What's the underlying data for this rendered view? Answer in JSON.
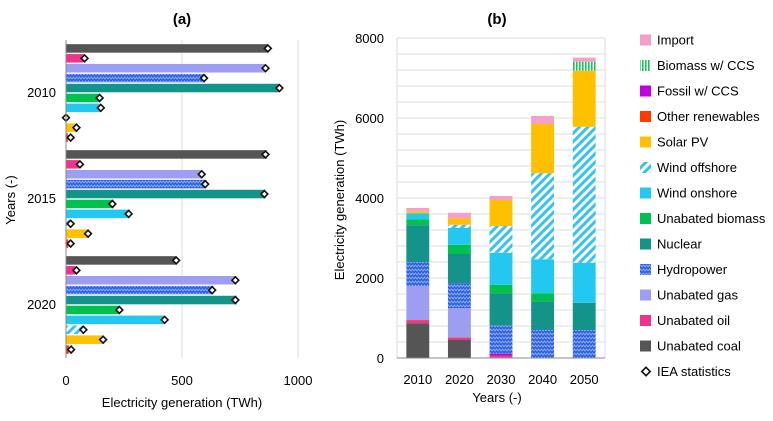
{
  "chart_data": [
    {
      "type": "bar",
      "orientation": "horizontal",
      "title": "(a)",
      "xlabel": "Electricity generation (TWh)",
      "ylabel": "Years (-)",
      "xlim": [
        0,
        1000
      ],
      "xticks": [
        "0",
        "500",
        "1000"
      ],
      "grid": "vertical",
      "categories": [
        "2010",
        "2015",
        "2020"
      ],
      "bar_order_top_to_bottom": [
        "Unabated  coal",
        "Unabated oil",
        "Unabated gas",
        "Hydropower",
        "Nuclear",
        "Unabated biomass",
        "Wind onshore",
        "Wind offshore",
        "Solar PV",
        "Other renewables"
      ],
      "series": [
        {
          "name": "Unabated  coal",
          "values": [
            870,
            865,
            475
          ],
          "iea": [
            870,
            860,
            475
          ]
        },
        {
          "name": "Unabated oil",
          "values": [
            75,
            55,
            40
          ],
          "iea": [
            80,
            60,
            45
          ]
        },
        {
          "name": "Unabated gas",
          "values": [
            860,
            585,
            735
          ],
          "iea": [
            860,
            585,
            730
          ]
        },
        {
          "name": "Hydropower",
          "values": [
            600,
            605,
            635
          ],
          "iea": [
            595,
            600,
            630
          ]
        },
        {
          "name": "Nuclear",
          "values": [
            920,
            860,
            735
          ],
          "iea": [
            920,
            855,
            730
          ]
        },
        {
          "name": "Unabated biomass",
          "values": [
            145,
            205,
            230
          ],
          "iea": [
            145,
            200,
            230
          ]
        },
        {
          "name": "Wind onshore",
          "values": [
            150,
            275,
            425
          ],
          "iea": [
            150,
            270,
            425
          ]
        },
        {
          "name": "Wind offshore",
          "values": [
            0,
            20,
            75
          ],
          "iea": [
            0,
            20,
            75
          ]
        },
        {
          "name": "Solar PV",
          "values": [
            50,
            100,
            165
          ],
          "iea": [
            45,
            95,
            160
          ]
        },
        {
          "name": "Other renewables",
          "values": [
            8,
            10,
            12
          ],
          "iea": [
            20,
            20,
            22
          ]
        }
      ]
    },
    {
      "type": "bar",
      "stacked": true,
      "title": "(b)",
      "xlabel": "Years (-)",
      "ylabel": "Electricity generation (TWh)",
      "ylim": [
        0,
        8000
      ],
      "yticks": [
        "0",
        "2000",
        "4000",
        "6000",
        "8000"
      ],
      "grid": "horizontal",
      "categories": [
        "2010",
        "2020",
        "2030",
        "2040",
        "2050"
      ],
      "series": [
        {
          "name": "Unabated  coal",
          "values": [
            870,
            450,
            20,
            0,
            0
          ]
        },
        {
          "name": "Unabated oil",
          "values": [
            70,
            50,
            30,
            0,
            0
          ]
        },
        {
          "name": "Other renewables",
          "values": [
            10,
            10,
            10,
            0,
            0
          ]
        },
        {
          "name": "Fossil w/ CCS",
          "values": [
            0,
            0,
            50,
            0,
            0
          ]
        },
        {
          "name": "Unabated gas",
          "values": [
            850,
            740,
            0,
            0,
            0
          ]
        },
        {
          "name": "Hydropower",
          "values": [
            600,
            620,
            700,
            700,
            700
          ]
        },
        {
          "name": "Nuclear",
          "values": [
            920,
            730,
            800,
            720,
            680
          ]
        },
        {
          "name": "Unabated biomass",
          "values": [
            150,
            230,
            220,
            200,
            0
          ]
        },
        {
          "name": "Wind onshore",
          "values": [
            150,
            420,
            800,
            850,
            1000
          ]
        },
        {
          "name": "Wind offshore",
          "values": [
            0,
            80,
            670,
            2150,
            3400
          ]
        },
        {
          "name": "Solar PV",
          "values": [
            50,
            160,
            650,
            1230,
            1400
          ]
        },
        {
          "name": "Biomass w/ CCS",
          "values": [
            0,
            0,
            0,
            0,
            230
          ]
        },
        {
          "name": "Import",
          "values": [
            80,
            140,
            100,
            200,
            100
          ]
        }
      ]
    }
  ],
  "legend": {
    "placement": "right",
    "items": [
      {
        "key": "import",
        "label": "Import"
      },
      {
        "key": "biomass_ccs",
        "label": "Biomass w/ CCS"
      },
      {
        "key": "fossil_ccs",
        "label": "Fossil w/ CCS"
      },
      {
        "key": "other_ren",
        "label": "Other renewables"
      },
      {
        "key": "solar",
        "label": "Solar PV"
      },
      {
        "key": "wind_off",
        "label": "Wind offshore"
      },
      {
        "key": "wind_on",
        "label": "Wind onshore"
      },
      {
        "key": "biomass",
        "label": "Unabated biomass"
      },
      {
        "key": "nuclear",
        "label": "Nuclear"
      },
      {
        "key": "hydro",
        "label": "Hydropower"
      },
      {
        "key": "gas",
        "label": "Unabated gas"
      },
      {
        "key": "oil",
        "label": "Unabated oil"
      },
      {
        "key": "coal",
        "label": "Unabated  coal"
      },
      {
        "key": "iea",
        "label": "IEA statistics"
      }
    ]
  },
  "colors": {
    "Import": "#f5a0c8",
    "Biomass w/ CCS": "#19c25a",
    "Fossil w/ CCS": "#c000e0",
    "Other renewables": "#ff3a00",
    "Solar PV": "#ffc000",
    "Wind offshore": "#38c2f0",
    "Wind onshore": "#22c8f0",
    "Unabated biomass": "#00c050",
    "Nuclear": "#13938a",
    "Hydropower": "#3b6fe6",
    "Unabated gas": "#9d9df2",
    "Unabated oil": "#f0348e",
    "Unabated  coal": "#555555",
    "IEA statistics": "#111111",
    "grid": "#dcdcdc",
    "axis": "#888888"
  },
  "patterns": {
    "Wind offshore": "diagonal-stripes",
    "Hydropower": "zigzag",
    "Biomass w/ CCS": "vertical-stripes"
  }
}
